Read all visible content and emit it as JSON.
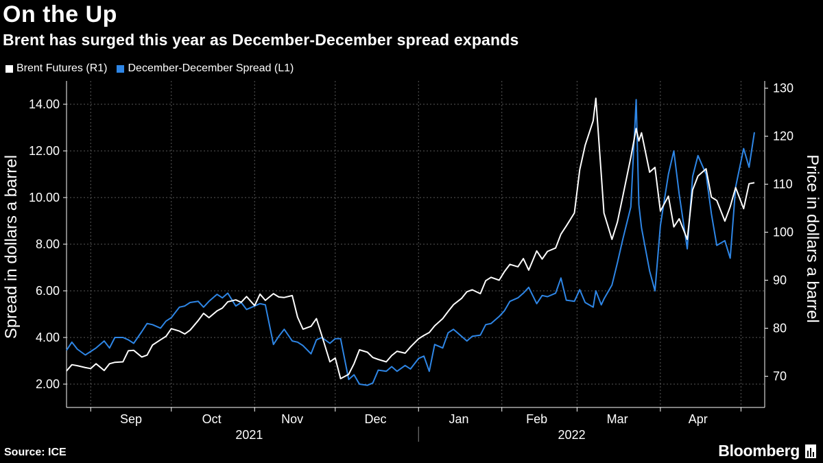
{
  "title": "On the Up",
  "subtitle": "Brent has surged this year as December-December spread expands",
  "legend": [
    {
      "label": "Brent Futures (R1)",
      "color": "#ffffff"
    },
    {
      "label": "December-December Spread (L1)",
      "color": "#2e86e6"
    }
  ],
  "footer": {
    "source": "Source: ICE",
    "brand": "Bloomberg"
  },
  "colors": {
    "background": "#000000",
    "grid": "#5a5a5a",
    "brent": "#ffffff",
    "spread": "#2e86e6"
  },
  "chart_data": {
    "type": "line",
    "title": "On the Up",
    "subtitle": "Brent has surged this year as December-December spread expands",
    "ylabel_left": "Spread in dollars a barrel",
    "ylabel_right": "Price in dollars a barrel",
    "ylim_left": [
      1.0,
      15.0
    ],
    "ylim_right": [
      63.5,
      131.5
    ],
    "yticks_left": [
      "2.00",
      "4.00",
      "6.00",
      "8.00",
      "10.00",
      "12.00",
      "14.00"
    ],
    "yticks_left_values": [
      2,
      4,
      6,
      8,
      10,
      12,
      14
    ],
    "yticks_right": [
      "70",
      "80",
      "90",
      "100",
      "110",
      "120",
      "130"
    ],
    "yticks_right_values": [
      70,
      80,
      90,
      100,
      110,
      120,
      130
    ],
    "x_start": "2021-08-23",
    "x_end": "2022-04-29",
    "month_ticks": [
      "2021-09-01",
      "2021-10-01",
      "2021-11-01",
      "2021-12-01",
      "2022-01-01",
      "2022-02-01",
      "2022-03-01",
      "2022-04-01",
      "2022-05-01"
    ],
    "month_labels": [
      {
        "label": "Sep",
        "date": "2021-09-16"
      },
      {
        "label": "Oct",
        "date": "2021-10-16"
      },
      {
        "label": "Nov",
        "date": "2021-11-15"
      },
      {
        "label": "Dec",
        "date": "2021-12-16"
      },
      {
        "label": "Jan",
        "date": "2022-01-16"
      },
      {
        "label": "Feb",
        "date": "2022-02-14"
      },
      {
        "label": "Mar",
        "date": "2022-03-16"
      },
      {
        "label": "Apr",
        "date": "2022-04-15"
      }
    ],
    "year_labels": [
      {
        "label": "2021",
        "date": "2021-10-30"
      },
      {
        "label": "2022",
        "date": "2022-02-27"
      }
    ],
    "year_separator": "2022-01-01",
    "grid": true,
    "legend_position": "top-left",
    "series": [
      {
        "name": "Brent Futures (R1)",
        "axis": "right",
        "color": "#ffffff",
        "points": [
          [
            "2021-08-23",
            71.1
          ],
          [
            "2021-08-25",
            72.4
          ],
          [
            "2021-08-27",
            72.2
          ],
          [
            "2021-08-30",
            71.8
          ],
          [
            "2021-09-01",
            71.6
          ],
          [
            "2021-09-03",
            72.6
          ],
          [
            "2021-09-06",
            71.2
          ],
          [
            "2021-09-08",
            72.6
          ],
          [
            "2021-09-10",
            72.9
          ],
          [
            "2021-09-13",
            73.0
          ],
          [
            "2021-09-15",
            75.3
          ],
          [
            "2021-09-17",
            75.4
          ],
          [
            "2021-09-20",
            74.0
          ],
          [
            "2021-09-22",
            74.4
          ],
          [
            "2021-09-24",
            76.5
          ],
          [
            "2021-09-27",
            77.6
          ],
          [
            "2021-09-29",
            78.3
          ],
          [
            "2021-10-01",
            79.9
          ],
          [
            "2021-10-04",
            79.4
          ],
          [
            "2021-10-06",
            78.8
          ],
          [
            "2021-10-08",
            79.6
          ],
          [
            "2021-10-11",
            81.6
          ],
          [
            "2021-10-13",
            83.1
          ],
          [
            "2021-10-15",
            82.2
          ],
          [
            "2021-10-18",
            83.6
          ],
          [
            "2021-10-20",
            84.2
          ],
          [
            "2021-10-22",
            85.5
          ],
          [
            "2021-10-25",
            85.9
          ],
          [
            "2021-10-27",
            85.4
          ],
          [
            "2021-10-29",
            86.6
          ],
          [
            "2021-11-01",
            84.7
          ],
          [
            "2021-11-03",
            87.1
          ],
          [
            "2021-11-05",
            85.8
          ],
          [
            "2021-11-08",
            87.2
          ],
          [
            "2021-11-10",
            86.5
          ],
          [
            "2021-11-12",
            86.4
          ],
          [
            "2021-11-15",
            86.8
          ],
          [
            "2021-11-17",
            82.3
          ],
          [
            "2021-11-19",
            79.8
          ],
          [
            "2021-11-22",
            80.4
          ],
          [
            "2021-11-24",
            82.0
          ],
          [
            "2021-11-26",
            78.5
          ],
          [
            "2021-11-29",
            73.0
          ],
          [
            "2021-12-01",
            73.8
          ],
          [
            "2021-12-03",
            69.5
          ],
          [
            "2021-12-06",
            70.4
          ],
          [
            "2021-12-08",
            72.6
          ],
          [
            "2021-12-10",
            75.5
          ],
          [
            "2021-12-13",
            75.0
          ],
          [
            "2021-12-15",
            73.9
          ],
          [
            "2021-12-17",
            73.5
          ],
          [
            "2021-12-20",
            73.0
          ],
          [
            "2021-12-22",
            74.3
          ],
          [
            "2021-12-24",
            75.2
          ],
          [
            "2021-12-27",
            74.8
          ],
          [
            "2021-12-29",
            76.1
          ],
          [
            "2022-01-01",
            77.8
          ],
          [
            "2022-01-03",
            78.5
          ],
          [
            "2022-01-05",
            79.1
          ],
          [
            "2022-01-07",
            80.5
          ],
          [
            "2022-01-10",
            82.0
          ],
          [
            "2022-01-12",
            83.5
          ],
          [
            "2022-01-14",
            84.9
          ],
          [
            "2022-01-17",
            86.2
          ],
          [
            "2022-01-19",
            87.6
          ],
          [
            "2022-01-21",
            88.0
          ],
          [
            "2022-01-24",
            87.2
          ],
          [
            "2022-01-26",
            89.9
          ],
          [
            "2022-01-28",
            90.6
          ],
          [
            "2022-01-31",
            90.0
          ],
          [
            "2022-02-02",
            91.8
          ],
          [
            "2022-02-04",
            93.3
          ],
          [
            "2022-02-07",
            92.8
          ],
          [
            "2022-02-09",
            94.5
          ],
          [
            "2022-02-11",
            92.1
          ],
          [
            "2022-02-14",
            96.1
          ],
          [
            "2022-02-16",
            94.4
          ],
          [
            "2022-02-18",
            96.0
          ],
          [
            "2022-02-21",
            96.7
          ],
          [
            "2022-02-23",
            99.6
          ],
          [
            "2022-02-25",
            101.3
          ],
          [
            "2022-02-28",
            104.0
          ],
          [
            "2022-03-02",
            113.0
          ],
          [
            "2022-03-04",
            118.1
          ],
          [
            "2022-03-07",
            123.2
          ],
          [
            "2022-03-08",
            127.9
          ],
          [
            "2022-03-10",
            112.0
          ],
          [
            "2022-03-11",
            104.0
          ],
          [
            "2022-03-14",
            98.5
          ],
          [
            "2022-03-16",
            102.1
          ],
          [
            "2022-03-18",
            107.4
          ],
          [
            "2022-03-21",
            115.6
          ],
          [
            "2022-03-23",
            121.6
          ],
          [
            "2022-03-24",
            119.0
          ],
          [
            "2022-03-25",
            120.7
          ],
          [
            "2022-03-28",
            112.5
          ],
          [
            "2022-03-30",
            113.5
          ],
          [
            "2022-04-01",
            104.4
          ],
          [
            "2022-04-04",
            107.5
          ],
          [
            "2022-04-06",
            101.1
          ],
          [
            "2022-04-08",
            102.8
          ],
          [
            "2022-04-11",
            98.5
          ],
          [
            "2022-04-13",
            108.8
          ],
          [
            "2022-04-15",
            111.7
          ],
          [
            "2022-04-18",
            113.2
          ],
          [
            "2022-04-20",
            107.3
          ],
          [
            "2022-04-22",
            106.6
          ],
          [
            "2022-04-25",
            102.3
          ],
          [
            "2022-04-27",
            105.3
          ],
          [
            "2022-04-29",
            109.3
          ],
          [
            "2022-05-02",
            104.9
          ],
          [
            "2022-05-04",
            110.1
          ],
          [
            "2022-05-06",
            110.3
          ]
        ]
      },
      {
        "name": "December-December Spread (L1)",
        "axis": "left",
        "color": "#2e86e6",
        "points": [
          [
            "2021-08-23",
            3.45
          ],
          [
            "2021-08-25",
            3.8
          ],
          [
            "2021-08-27",
            3.5
          ],
          [
            "2021-08-30",
            3.25
          ],
          [
            "2021-09-01",
            3.4
          ],
          [
            "2021-09-03",
            3.55
          ],
          [
            "2021-09-06",
            3.85
          ],
          [
            "2021-09-08",
            3.55
          ],
          [
            "2021-09-10",
            4.0
          ],
          [
            "2021-09-13",
            4.0
          ],
          [
            "2021-09-15",
            3.9
          ],
          [
            "2021-09-17",
            3.75
          ],
          [
            "2021-09-20",
            4.25
          ],
          [
            "2021-09-22",
            4.6
          ],
          [
            "2021-09-24",
            4.55
          ],
          [
            "2021-09-27",
            4.4
          ],
          [
            "2021-09-29",
            4.7
          ],
          [
            "2021-10-01",
            4.85
          ],
          [
            "2021-10-04",
            5.3
          ],
          [
            "2021-10-06",
            5.35
          ],
          [
            "2021-10-08",
            5.5
          ],
          [
            "2021-10-11",
            5.55
          ],
          [
            "2021-10-13",
            5.3
          ],
          [
            "2021-10-15",
            5.55
          ],
          [
            "2021-10-18",
            5.85
          ],
          [
            "2021-10-20",
            5.7
          ],
          [
            "2021-10-22",
            5.9
          ],
          [
            "2021-10-25",
            5.35
          ],
          [
            "2021-10-27",
            5.5
          ],
          [
            "2021-10-29",
            5.2
          ],
          [
            "2021-11-01",
            5.35
          ],
          [
            "2021-11-03",
            5.45
          ],
          [
            "2021-11-05",
            5.4
          ],
          [
            "2021-11-08",
            3.7
          ],
          [
            "2021-11-10",
            4.05
          ],
          [
            "2021-11-12",
            4.35
          ],
          [
            "2021-11-15",
            3.85
          ],
          [
            "2021-11-17",
            3.8
          ],
          [
            "2021-11-19",
            3.65
          ],
          [
            "2021-11-22",
            3.3
          ],
          [
            "2021-11-24",
            3.9
          ],
          [
            "2021-11-26",
            4.0
          ],
          [
            "2021-11-29",
            3.75
          ],
          [
            "2021-12-01",
            3.95
          ],
          [
            "2021-12-03",
            3.95
          ],
          [
            "2021-12-06",
            2.2
          ],
          [
            "2021-12-08",
            2.4
          ],
          [
            "2021-12-10",
            2.0
          ],
          [
            "2021-12-13",
            1.95
          ],
          [
            "2021-12-15",
            2.05
          ],
          [
            "2021-12-17",
            2.6
          ],
          [
            "2021-12-20",
            2.55
          ],
          [
            "2021-12-22",
            2.75
          ],
          [
            "2021-12-24",
            2.55
          ],
          [
            "2021-12-27",
            2.8
          ],
          [
            "2021-12-29",
            2.65
          ],
          [
            "2022-01-01",
            3.1
          ],
          [
            "2022-01-03",
            3.2
          ],
          [
            "2022-01-05",
            2.55
          ],
          [
            "2022-01-07",
            3.7
          ],
          [
            "2022-01-10",
            3.55
          ],
          [
            "2022-01-12",
            4.2
          ],
          [
            "2022-01-14",
            4.35
          ],
          [
            "2022-01-17",
            4.05
          ],
          [
            "2022-01-19",
            3.85
          ],
          [
            "2022-01-21",
            4.05
          ],
          [
            "2022-01-24",
            4.1
          ],
          [
            "2022-01-26",
            4.55
          ],
          [
            "2022-01-28",
            4.6
          ],
          [
            "2022-01-31",
            4.9
          ],
          [
            "2022-02-02",
            5.15
          ],
          [
            "2022-02-04",
            5.55
          ],
          [
            "2022-02-07",
            5.7
          ],
          [
            "2022-02-09",
            5.9
          ],
          [
            "2022-02-11",
            6.15
          ],
          [
            "2022-02-14",
            5.45
          ],
          [
            "2022-02-16",
            5.8
          ],
          [
            "2022-02-18",
            5.75
          ],
          [
            "2022-02-21",
            5.9
          ],
          [
            "2022-02-23",
            6.55
          ],
          [
            "2022-02-25",
            5.6
          ],
          [
            "2022-02-28",
            5.55
          ],
          [
            "2022-03-02",
            6.05
          ],
          [
            "2022-03-04",
            5.5
          ],
          [
            "2022-03-07",
            5.3
          ],
          [
            "2022-03-08",
            6.0
          ],
          [
            "2022-03-10",
            5.4
          ],
          [
            "2022-03-11",
            5.65
          ],
          [
            "2022-03-14",
            6.25
          ],
          [
            "2022-03-16",
            7.2
          ],
          [
            "2022-03-18",
            8.2
          ],
          [
            "2022-03-21",
            9.6
          ],
          [
            "2022-03-23",
            14.2
          ],
          [
            "2022-03-24",
            9.7
          ],
          [
            "2022-03-25",
            8.7
          ],
          [
            "2022-03-28",
            6.85
          ],
          [
            "2022-03-30",
            6.0
          ],
          [
            "2022-04-01",
            8.8
          ],
          [
            "2022-04-04",
            11.0
          ],
          [
            "2022-04-06",
            12.0
          ],
          [
            "2022-04-08",
            10.15
          ],
          [
            "2022-04-11",
            7.8
          ],
          [
            "2022-04-13",
            10.9
          ],
          [
            "2022-04-15",
            11.8
          ],
          [
            "2022-04-18",
            11.0
          ],
          [
            "2022-04-20",
            9.3
          ],
          [
            "2022-04-22",
            7.95
          ],
          [
            "2022-04-25",
            8.15
          ],
          [
            "2022-04-27",
            7.4
          ],
          [
            "2022-04-29",
            10.45
          ],
          [
            "2022-05-02",
            12.1
          ],
          [
            "2022-05-04",
            11.3
          ],
          [
            "2022-05-06",
            12.8
          ]
        ]
      }
    ]
  }
}
